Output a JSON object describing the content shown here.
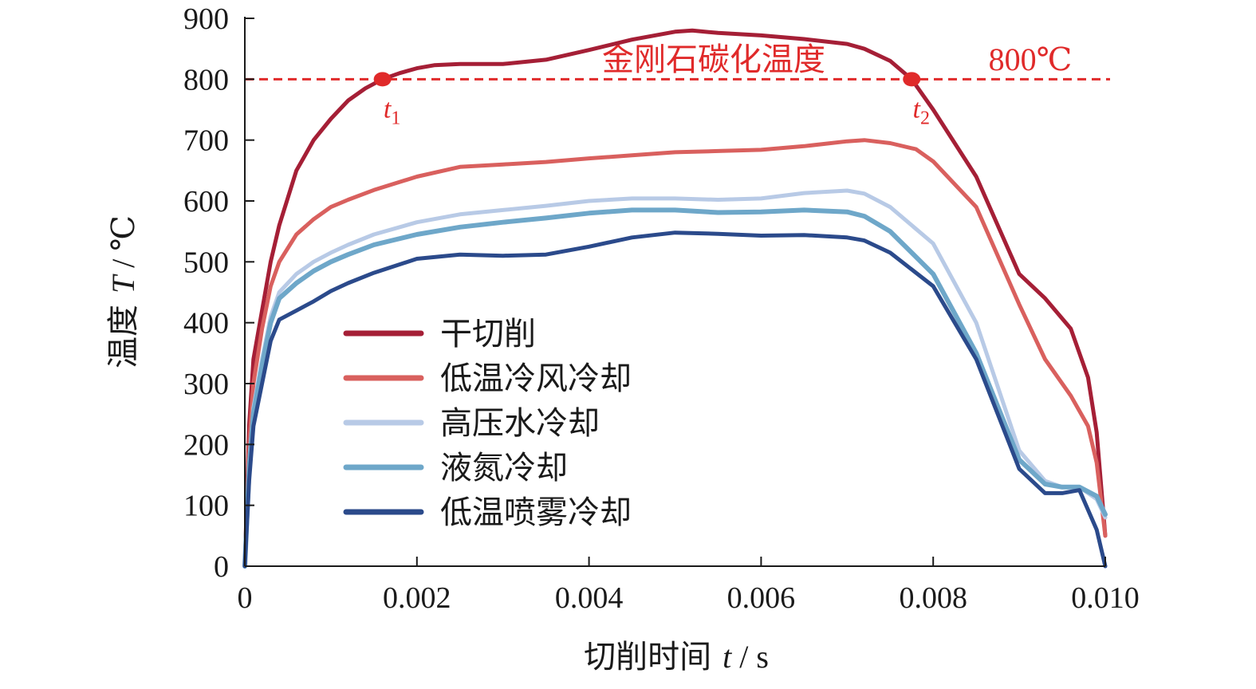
{
  "chart_data": {
    "type": "line",
    "x_axis": {
      "label_prefix": "切削时间",
      "label_var": "t",
      "label_unit": "/ s",
      "range": [
        0,
        0.01
      ],
      "ticks": [
        0,
        0.002,
        0.004,
        0.006,
        0.008,
        0.01
      ],
      "tick_labels": [
        "0",
        "0.002",
        "0.004",
        "0.006",
        "0.008",
        "0.010"
      ]
    },
    "y_axis": {
      "label_prefix": "温度",
      "label_var": "T",
      "label_unit": "/ ℃",
      "range": [
        0,
        900
      ],
      "ticks": [
        0,
        100,
        200,
        300,
        400,
        500,
        600,
        700,
        800,
        900
      ],
      "tick_labels": [
        "0",
        "100",
        "200",
        "300",
        "400",
        "500",
        "600",
        "700",
        "800",
        "900"
      ]
    },
    "grid": false,
    "legend_position": "lower-left",
    "reference_line": {
      "y": 800,
      "label": "金刚石碳化温度",
      "value_label": "800℃",
      "color": "#e02a2a",
      "style": "dashed"
    },
    "markers": [
      {
        "x": 0.0016,
        "y": 800,
        "label": "t",
        "sub": "1"
      },
      {
        "x": 0.00775,
        "y": 800,
        "label": "t",
        "sub": "2"
      }
    ],
    "series": [
      {
        "name": "干切削",
        "color": "#a51f36",
        "points": [
          [
            0,
            0
          ],
          [
            5e-05,
            230
          ],
          [
            0.0001,
            340
          ],
          [
            0.0002,
            420
          ],
          [
            0.0003,
            500
          ],
          [
            0.0004,
            560
          ],
          [
            0.0006,
            650
          ],
          [
            0.0008,
            700
          ],
          [
            0.001,
            735
          ],
          [
            0.0012,
            765
          ],
          [
            0.0014,
            785
          ],
          [
            0.0016,
            800
          ],
          [
            0.0018,
            810
          ],
          [
            0.002,
            818
          ],
          [
            0.0022,
            823
          ],
          [
            0.0025,
            825
          ],
          [
            0.003,
            825
          ],
          [
            0.0035,
            832
          ],
          [
            0.004,
            848
          ],
          [
            0.0045,
            865
          ],
          [
            0.005,
            878
          ],
          [
            0.0052,
            880
          ],
          [
            0.0055,
            876
          ],
          [
            0.006,
            872
          ],
          [
            0.0065,
            866
          ],
          [
            0.007,
            858
          ],
          [
            0.0072,
            850
          ],
          [
            0.0075,
            830
          ],
          [
            0.00775,
            800
          ],
          [
            0.008,
            750
          ],
          [
            0.0085,
            640
          ],
          [
            0.009,
            480
          ],
          [
            0.0093,
            440
          ],
          [
            0.0096,
            390
          ],
          [
            0.0098,
            310
          ],
          [
            0.0099,
            220
          ],
          [
            0.01,
            50
          ]
        ]
      },
      {
        "name": "低温冷风冷却",
        "color": "#d9605e",
        "points": [
          [
            0,
            0
          ],
          [
            5e-05,
            200
          ],
          [
            0.0001,
            300
          ],
          [
            0.0002,
            390
          ],
          [
            0.0003,
            460
          ],
          [
            0.0004,
            500
          ],
          [
            0.0006,
            545
          ],
          [
            0.0008,
            570
          ],
          [
            0.001,
            590
          ],
          [
            0.0012,
            602
          ],
          [
            0.0015,
            618
          ],
          [
            0.002,
            640
          ],
          [
            0.0025,
            656
          ],
          [
            0.003,
            660
          ],
          [
            0.0035,
            664
          ],
          [
            0.004,
            670
          ],
          [
            0.0045,
            675
          ],
          [
            0.005,
            680
          ],
          [
            0.0055,
            682
          ],
          [
            0.006,
            684
          ],
          [
            0.0065,
            690
          ],
          [
            0.007,
            698
          ],
          [
            0.0072,
            700
          ],
          [
            0.0075,
            695
          ],
          [
            0.0078,
            685
          ],
          [
            0.008,
            665
          ],
          [
            0.0085,
            590
          ],
          [
            0.009,
            430
          ],
          [
            0.0093,
            340
          ],
          [
            0.0096,
            280
          ],
          [
            0.0098,
            230
          ],
          [
            0.0099,
            170
          ],
          [
            0.01,
            50
          ]
        ]
      },
      {
        "name": "高压水冷却",
        "color": "#b8cae6",
        "points": [
          [
            0,
            0
          ],
          [
            5e-05,
            170
          ],
          [
            0.0001,
            260
          ],
          [
            0.0002,
            340
          ],
          [
            0.0003,
            410
          ],
          [
            0.0004,
            450
          ],
          [
            0.0006,
            480
          ],
          [
            0.0008,
            500
          ],
          [
            0.001,
            515
          ],
          [
            0.0012,
            528
          ],
          [
            0.0015,
            545
          ],
          [
            0.002,
            565
          ],
          [
            0.0025,
            578
          ],
          [
            0.003,
            585
          ],
          [
            0.0035,
            592
          ],
          [
            0.004,
            600
          ],
          [
            0.0045,
            604
          ],
          [
            0.005,
            604
          ],
          [
            0.0055,
            602
          ],
          [
            0.006,
            604
          ],
          [
            0.0065,
            613
          ],
          [
            0.007,
            617
          ],
          [
            0.0072,
            612
          ],
          [
            0.0075,
            590
          ],
          [
            0.008,
            530
          ],
          [
            0.0085,
            400
          ],
          [
            0.009,
            190
          ],
          [
            0.0093,
            140
          ],
          [
            0.0095,
            130
          ],
          [
            0.0097,
            130
          ],
          [
            0.0099,
            110
          ],
          [
            0.01,
            80
          ]
        ]
      },
      {
        "name": "液氮冷却",
        "color": "#6ea7c9",
        "points": [
          [
            0,
            0
          ],
          [
            5e-05,
            160
          ],
          [
            0.0001,
            250
          ],
          [
            0.0002,
            330
          ],
          [
            0.0003,
            400
          ],
          [
            0.0004,
            440
          ],
          [
            0.0006,
            465
          ],
          [
            0.0008,
            485
          ],
          [
            0.001,
            500
          ],
          [
            0.0012,
            512
          ],
          [
            0.0015,
            528
          ],
          [
            0.002,
            545
          ],
          [
            0.0025,
            557
          ],
          [
            0.003,
            565
          ],
          [
            0.0035,
            572
          ],
          [
            0.004,
            580
          ],
          [
            0.0045,
            585
          ],
          [
            0.005,
            585
          ],
          [
            0.0055,
            581
          ],
          [
            0.006,
            582
          ],
          [
            0.0065,
            585
          ],
          [
            0.007,
            582
          ],
          [
            0.0072,
            575
          ],
          [
            0.0075,
            550
          ],
          [
            0.008,
            480
          ],
          [
            0.0085,
            350
          ],
          [
            0.009,
            175
          ],
          [
            0.0093,
            135
          ],
          [
            0.0095,
            130
          ],
          [
            0.0097,
            130
          ],
          [
            0.0099,
            115
          ],
          [
            0.01,
            85
          ]
        ]
      },
      {
        "name": "低温喷雾冷却",
        "color": "#2b4a8b",
        "points": [
          [
            0,
            0
          ],
          [
            5e-05,
            140
          ],
          [
            0.0001,
            230
          ],
          [
            0.0002,
            300
          ],
          [
            0.0003,
            370
          ],
          [
            0.0004,
            405
          ],
          [
            0.0006,
            420
          ],
          [
            0.0008,
            435
          ],
          [
            0.001,
            452
          ],
          [
            0.0012,
            465
          ],
          [
            0.0015,
            482
          ],
          [
            0.002,
            505
          ],
          [
            0.0025,
            512
          ],
          [
            0.003,
            510
          ],
          [
            0.0035,
            512
          ],
          [
            0.004,
            525
          ],
          [
            0.0045,
            540
          ],
          [
            0.005,
            548
          ],
          [
            0.0055,
            546
          ],
          [
            0.006,
            543
          ],
          [
            0.0065,
            544
          ],
          [
            0.007,
            540
          ],
          [
            0.0072,
            535
          ],
          [
            0.0075,
            515
          ],
          [
            0.008,
            460
          ],
          [
            0.0085,
            340
          ],
          [
            0.009,
            160
          ],
          [
            0.0093,
            120
          ],
          [
            0.0095,
            120
          ],
          [
            0.0097,
            125
          ],
          [
            0.0099,
            60
          ],
          [
            0.01,
            0
          ]
        ]
      }
    ]
  }
}
